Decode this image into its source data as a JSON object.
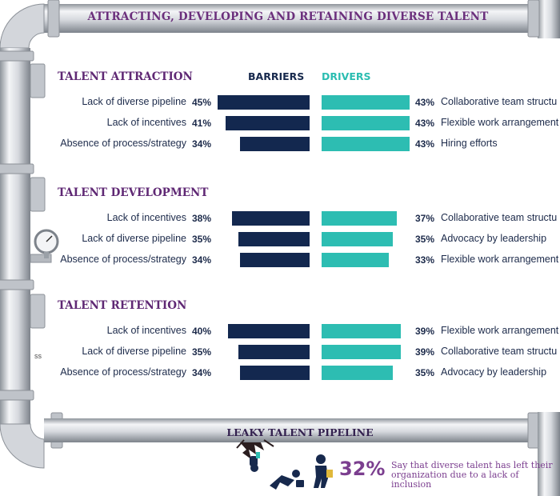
{
  "title": "ATTRACTING, DEVELOPING AND RETAINING DIVERSE TALENT",
  "column_headers": {
    "barriers": "BARRIERS",
    "drivers": "DRIVERS"
  },
  "footer_title": "LEAKY TALENT PIPELINE",
  "stat": {
    "value": "32%",
    "text": "Say that diverse talent has left their organization due to a lack of inclusion"
  },
  "margin_note": "ss",
  "colors": {
    "barrier": "#13284f",
    "driver": "#2dbdb2",
    "heading": "#5f2874",
    "pipe": "#c9ccd1"
  },
  "icons": [
    "gauge-icon",
    "broken-pipe-icon",
    "leaving-person-icon",
    "crouching-person-icon"
  ],
  "chart_data": [
    {
      "type": "bar",
      "title": "TALENT ATTRACTION",
      "barriers": [
        {
          "label": "Lack of diverse pipeline",
          "pct": "45%",
          "value": 45
        },
        {
          "label": "Lack of incentives",
          "pct": "41%",
          "value": 41
        },
        {
          "label": "Absence of process/strategy",
          "pct": "34%",
          "value": 34
        }
      ],
      "drivers": [
        {
          "label": "Collaborative team structu",
          "pct": "43%",
          "value": 43
        },
        {
          "label": "Flexible work arrangement",
          "pct": "43%",
          "value": 43
        },
        {
          "label": "Hiring efforts",
          "pct": "43%",
          "value": 43
        }
      ]
    },
    {
      "type": "bar",
      "title": "TALENT DEVELOPMENT",
      "barriers": [
        {
          "label": "Lack of incentives",
          "pct": "38%",
          "value": 38
        },
        {
          "label": "Lack of diverse pipeline",
          "pct": "35%",
          "value": 35
        },
        {
          "label": "Absence of process/strategy",
          "pct": "34%",
          "value": 34
        }
      ],
      "drivers": [
        {
          "label": "Collaborative team structu",
          "pct": "37%",
          "value": 37
        },
        {
          "label": "Advocacy by leadership",
          "pct": "35%",
          "value": 35
        },
        {
          "label": "Flexible work arrangement",
          "pct": "33%",
          "value": 33
        }
      ]
    },
    {
      "type": "bar",
      "title": "TALENT RETENTION",
      "barriers": [
        {
          "label": "Lack of incentives",
          "pct": "40%",
          "value": 40
        },
        {
          "label": "Lack of diverse pipeline",
          "pct": "35%",
          "value": 35
        },
        {
          "label": "Absence of process/strategy",
          "pct": "34%",
          "value": 34
        }
      ],
      "drivers": [
        {
          "label": "Flexible work arrangement",
          "pct": "39%",
          "value": 39
        },
        {
          "label": "Collaborative team structu",
          "pct": "39%",
          "value": 39
        },
        {
          "label": "Advocacy by leadership",
          "pct": "35%",
          "value": 35
        }
      ]
    }
  ]
}
